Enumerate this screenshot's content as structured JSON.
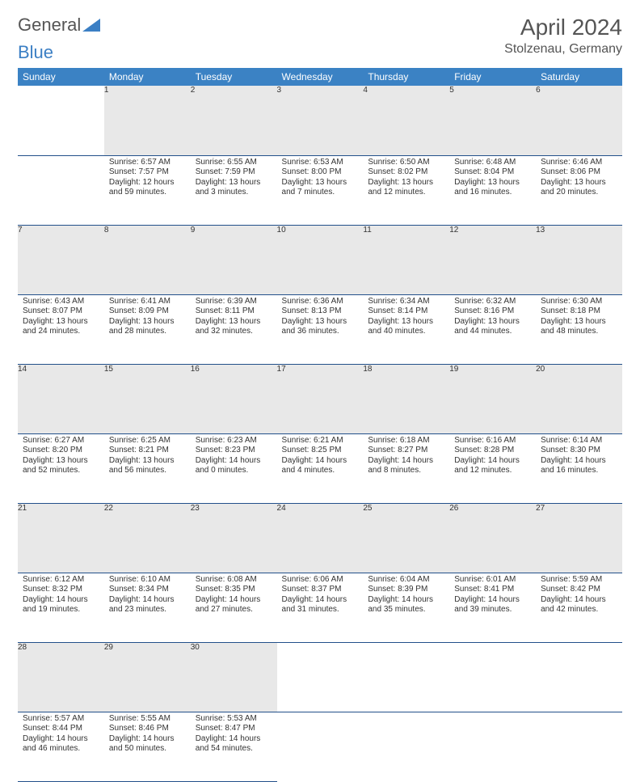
{
  "logo": {
    "text_general": "General",
    "text_blue": "Blue"
  },
  "header": {
    "month_title": "April 2024",
    "location": "Stolzenau, Germany"
  },
  "colors": {
    "header_bg": "#3b82c4",
    "header_text": "#ffffff",
    "daynum_bg": "#e8e8e8",
    "border": "#22508a",
    "logo_blue": "#3b7fc4",
    "text": "#333333"
  },
  "day_headers": [
    "Sunday",
    "Monday",
    "Tuesday",
    "Wednesday",
    "Thursday",
    "Friday",
    "Saturday"
  ],
  "weeks": [
    {
      "nums": [
        "",
        "1",
        "2",
        "3",
        "4",
        "5",
        "6"
      ],
      "cells": [
        null,
        {
          "sunrise": "Sunrise: 6:57 AM",
          "sunset": "Sunset: 7:57 PM",
          "day1": "Daylight: 12 hours",
          "day2": "and 59 minutes."
        },
        {
          "sunrise": "Sunrise: 6:55 AM",
          "sunset": "Sunset: 7:59 PM",
          "day1": "Daylight: 13 hours",
          "day2": "and 3 minutes."
        },
        {
          "sunrise": "Sunrise: 6:53 AM",
          "sunset": "Sunset: 8:00 PM",
          "day1": "Daylight: 13 hours",
          "day2": "and 7 minutes."
        },
        {
          "sunrise": "Sunrise: 6:50 AM",
          "sunset": "Sunset: 8:02 PM",
          "day1": "Daylight: 13 hours",
          "day2": "and 12 minutes."
        },
        {
          "sunrise": "Sunrise: 6:48 AM",
          "sunset": "Sunset: 8:04 PM",
          "day1": "Daylight: 13 hours",
          "day2": "and 16 minutes."
        },
        {
          "sunrise": "Sunrise: 6:46 AM",
          "sunset": "Sunset: 8:06 PM",
          "day1": "Daylight: 13 hours",
          "day2": "and 20 minutes."
        }
      ]
    },
    {
      "nums": [
        "7",
        "8",
        "9",
        "10",
        "11",
        "12",
        "13"
      ],
      "cells": [
        {
          "sunrise": "Sunrise: 6:43 AM",
          "sunset": "Sunset: 8:07 PM",
          "day1": "Daylight: 13 hours",
          "day2": "and 24 minutes."
        },
        {
          "sunrise": "Sunrise: 6:41 AM",
          "sunset": "Sunset: 8:09 PM",
          "day1": "Daylight: 13 hours",
          "day2": "and 28 minutes."
        },
        {
          "sunrise": "Sunrise: 6:39 AM",
          "sunset": "Sunset: 8:11 PM",
          "day1": "Daylight: 13 hours",
          "day2": "and 32 minutes."
        },
        {
          "sunrise": "Sunrise: 6:36 AM",
          "sunset": "Sunset: 8:13 PM",
          "day1": "Daylight: 13 hours",
          "day2": "and 36 minutes."
        },
        {
          "sunrise": "Sunrise: 6:34 AM",
          "sunset": "Sunset: 8:14 PM",
          "day1": "Daylight: 13 hours",
          "day2": "and 40 minutes."
        },
        {
          "sunrise": "Sunrise: 6:32 AM",
          "sunset": "Sunset: 8:16 PM",
          "day1": "Daylight: 13 hours",
          "day2": "and 44 minutes."
        },
        {
          "sunrise": "Sunrise: 6:30 AM",
          "sunset": "Sunset: 8:18 PM",
          "day1": "Daylight: 13 hours",
          "day2": "and 48 minutes."
        }
      ]
    },
    {
      "nums": [
        "14",
        "15",
        "16",
        "17",
        "18",
        "19",
        "20"
      ],
      "cells": [
        {
          "sunrise": "Sunrise: 6:27 AM",
          "sunset": "Sunset: 8:20 PM",
          "day1": "Daylight: 13 hours",
          "day2": "and 52 minutes."
        },
        {
          "sunrise": "Sunrise: 6:25 AM",
          "sunset": "Sunset: 8:21 PM",
          "day1": "Daylight: 13 hours",
          "day2": "and 56 minutes."
        },
        {
          "sunrise": "Sunrise: 6:23 AM",
          "sunset": "Sunset: 8:23 PM",
          "day1": "Daylight: 14 hours",
          "day2": "and 0 minutes."
        },
        {
          "sunrise": "Sunrise: 6:21 AM",
          "sunset": "Sunset: 8:25 PM",
          "day1": "Daylight: 14 hours",
          "day2": "and 4 minutes."
        },
        {
          "sunrise": "Sunrise: 6:18 AM",
          "sunset": "Sunset: 8:27 PM",
          "day1": "Daylight: 14 hours",
          "day2": "and 8 minutes."
        },
        {
          "sunrise": "Sunrise: 6:16 AM",
          "sunset": "Sunset: 8:28 PM",
          "day1": "Daylight: 14 hours",
          "day2": "and 12 minutes."
        },
        {
          "sunrise": "Sunrise: 6:14 AM",
          "sunset": "Sunset: 8:30 PM",
          "day1": "Daylight: 14 hours",
          "day2": "and 16 minutes."
        }
      ]
    },
    {
      "nums": [
        "21",
        "22",
        "23",
        "24",
        "25",
        "26",
        "27"
      ],
      "cells": [
        {
          "sunrise": "Sunrise: 6:12 AM",
          "sunset": "Sunset: 8:32 PM",
          "day1": "Daylight: 14 hours",
          "day2": "and 19 minutes."
        },
        {
          "sunrise": "Sunrise: 6:10 AM",
          "sunset": "Sunset: 8:34 PM",
          "day1": "Daylight: 14 hours",
          "day2": "and 23 minutes."
        },
        {
          "sunrise": "Sunrise: 6:08 AM",
          "sunset": "Sunset: 8:35 PM",
          "day1": "Daylight: 14 hours",
          "day2": "and 27 minutes."
        },
        {
          "sunrise": "Sunrise: 6:06 AM",
          "sunset": "Sunset: 8:37 PM",
          "day1": "Daylight: 14 hours",
          "day2": "and 31 minutes."
        },
        {
          "sunrise": "Sunrise: 6:04 AM",
          "sunset": "Sunset: 8:39 PM",
          "day1": "Daylight: 14 hours",
          "day2": "and 35 minutes."
        },
        {
          "sunrise": "Sunrise: 6:01 AM",
          "sunset": "Sunset: 8:41 PM",
          "day1": "Daylight: 14 hours",
          "day2": "and 39 minutes."
        },
        {
          "sunrise": "Sunrise: 5:59 AM",
          "sunset": "Sunset: 8:42 PM",
          "day1": "Daylight: 14 hours",
          "day2": "and 42 minutes."
        }
      ]
    },
    {
      "nums": [
        "28",
        "29",
        "30",
        "",
        "",
        "",
        ""
      ],
      "cells": [
        {
          "sunrise": "Sunrise: 5:57 AM",
          "sunset": "Sunset: 8:44 PM",
          "day1": "Daylight: 14 hours",
          "day2": "and 46 minutes."
        },
        {
          "sunrise": "Sunrise: 5:55 AM",
          "sunset": "Sunset: 8:46 PM",
          "day1": "Daylight: 14 hours",
          "day2": "and 50 minutes."
        },
        {
          "sunrise": "Sunrise: 5:53 AM",
          "sunset": "Sunset: 8:47 PM",
          "day1": "Daylight: 14 hours",
          "day2": "and 54 minutes."
        },
        null,
        null,
        null,
        null
      ]
    }
  ]
}
